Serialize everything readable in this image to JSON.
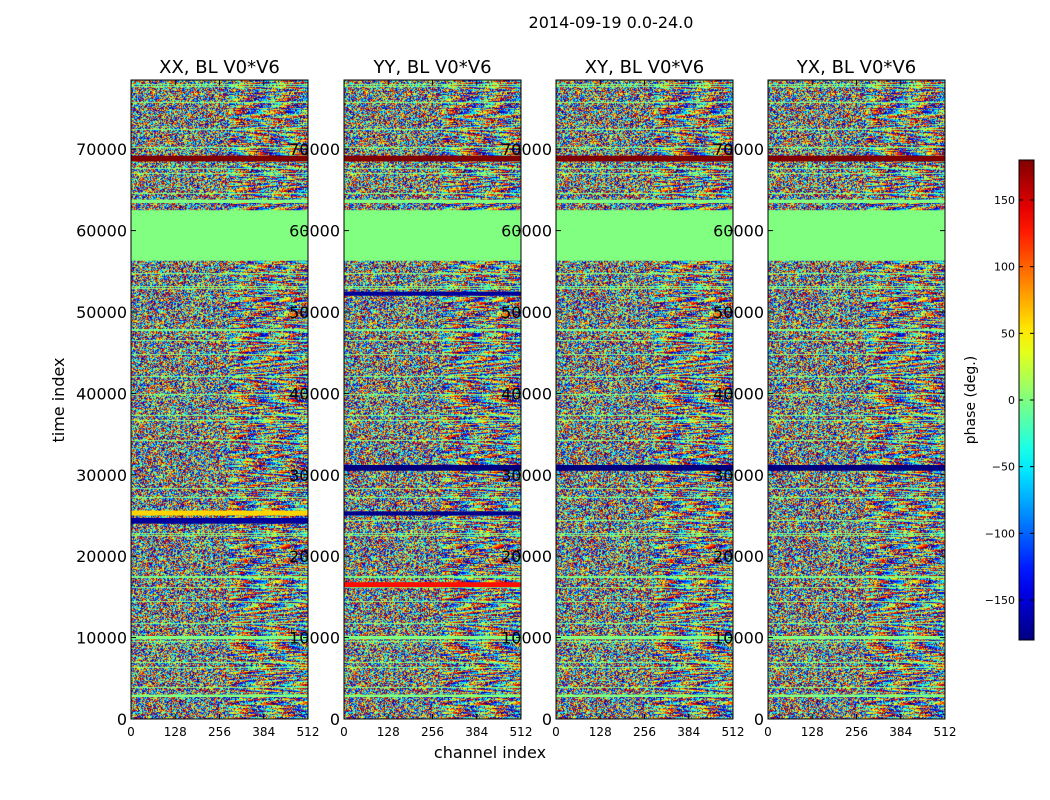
{
  "chart_data": {
    "type": "heatmap",
    "title": "2014-09-19 0.0-24.0",
    "xlabel": "channel index",
    "ylabel": "time index",
    "xlim": [
      0,
      512
    ],
    "ylim": [
      0,
      78500
    ],
    "xticks": [
      0,
      128,
      256,
      384,
      512
    ],
    "yticks": [
      0,
      10000,
      20000,
      30000,
      40000,
      50000,
      60000,
      70000
    ],
    "colorbar": {
      "label": "phase (deg.)",
      "range": [
        -180,
        180
      ],
      "ticks": [
        150,
        100,
        50,
        0,
        -50,
        -100,
        -150
      ],
      "tick_labels": [
        "150",
        "100",
        "50",
        "0",
        "−50",
        "−100",
        "−150"
      ]
    },
    "panels": [
      {
        "title": "XX, BL V0*V6"
      },
      {
        "title": "YY, BL V0*V6"
      },
      {
        "title": "XY, BL V0*V6"
      },
      {
        "title": "YX, BL V0*V6"
      }
    ],
    "flagged_time_ranges": [
      [
        56300,
        62500
      ],
      [
        63400,
        63800
      ],
      [
        9800,
        10200
      ],
      [
        2700,
        3000
      ]
    ],
    "saturated_bands": [
      {
        "time_range": [
          68500,
          69200
        ],
        "phase": 180,
        "panels": [
          0,
          1,
          2,
          3
        ]
      },
      {
        "time_range": [
          30500,
          31200
        ],
        "phase": -180,
        "panels": [
          1,
          2,
          3
        ]
      },
      {
        "time_range": [
          24000,
          24700
        ],
        "phase": -170,
        "panels": [
          0
        ]
      },
      {
        "time_range": [
          25000,
          25600
        ],
        "phase": 60,
        "panels": [
          0
        ]
      },
      {
        "time_range": [
          52000,
          52500
        ],
        "phase": -170,
        "panels": [
          1
        ]
      },
      {
        "time_range": [
          25000,
          25500
        ],
        "phase": -175,
        "panels": [
          1
        ]
      },
      {
        "time_range": [
          16200,
          16800
        ],
        "phase": 130,
        "panels": [
          1
        ]
      }
    ]
  }
}
